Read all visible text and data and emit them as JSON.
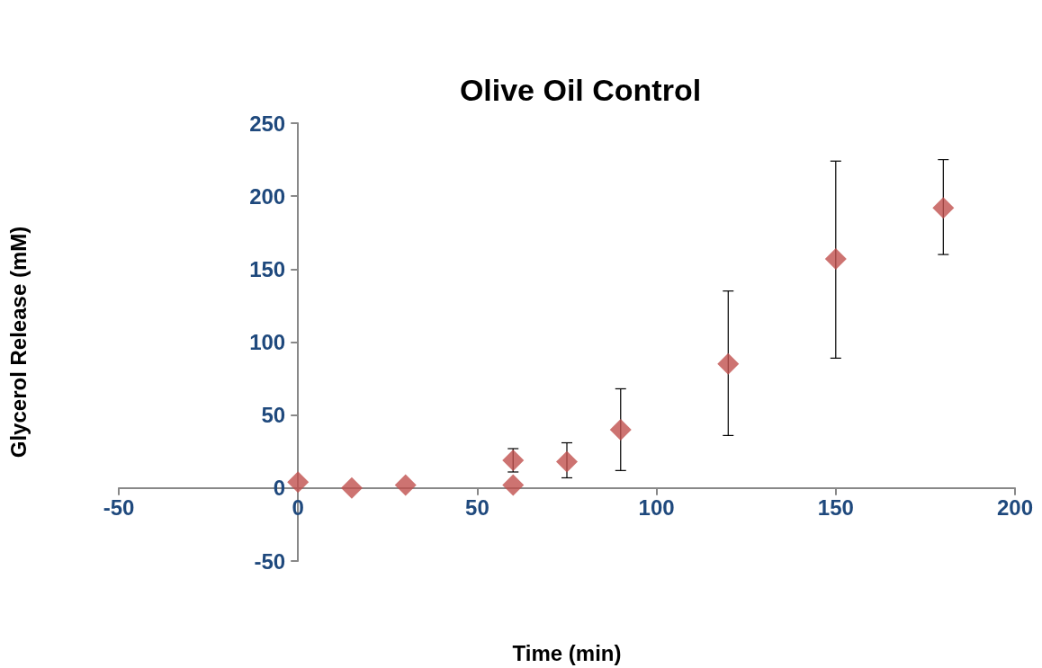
{
  "chart_data": {
    "type": "scatter",
    "title": "Olive Oil Control",
    "xlabel": "Time (min)",
    "ylabel": "Glycerol Release (mM)",
    "x": [
      0,
      15,
      30,
      60,
      60,
      75,
      90,
      120,
      150,
      180
    ],
    "values": [
      4,
      0,
      2,
      19,
      2,
      18,
      40,
      85,
      157,
      192
    ],
    "errors": [
      null,
      null,
      null,
      [
        11,
        27
      ],
      null,
      [
        7,
        31
      ],
      [
        12,
        68
      ],
      [
        36,
        135
      ],
      [
        89,
        224
      ],
      [
        160,
        225
      ]
    ],
    "color": "#c0504d",
    "marker": "diamond",
    "xlim": [
      -50,
      200
    ],
    "xticks": [
      -50,
      0,
      50,
      100,
      150,
      200
    ],
    "ylim": [
      -50,
      250
    ],
    "yticks": [
      -50,
      0,
      50,
      100,
      150,
      200,
      250
    ]
  }
}
